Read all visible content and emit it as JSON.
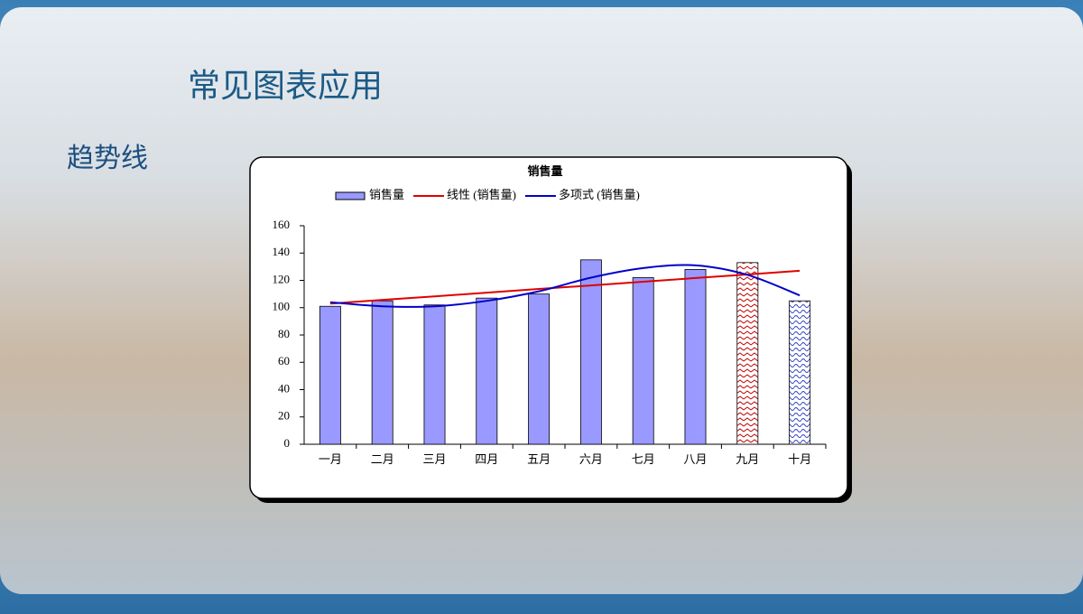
{
  "slide": {
    "title": "常见图表应用",
    "subtitle": "趋势线"
  },
  "chart_data": {
    "type": "bar",
    "title": "销售量",
    "categories": [
      "一月",
      "二月",
      "三月",
      "四月",
      "五月",
      "六月",
      "七月",
      "八月",
      "九月",
      "十月"
    ],
    "series": [
      {
        "name": "销售量",
        "color": "#9999ff",
        "values": [
          101,
          105,
          102,
          107,
          110,
          135,
          122,
          128,
          133,
          105
        ],
        "colors": [
          "#9999ff",
          "#9999ff",
          "#9999ff",
          "#9999ff",
          "#9999ff",
          "#9999ff",
          "#9999ff",
          "#9999ff",
          "#c00000",
          "#2f3fbf"
        ],
        "patterned": [
          false,
          false,
          false,
          false,
          false,
          false,
          false,
          false,
          true,
          true
        ]
      },
      {
        "name": "线性 (销售量)",
        "type": "line",
        "color": "#e00000",
        "values": [
          103,
          105.7,
          108.3,
          111,
          113.7,
          116.3,
          119,
          121.7,
          124.3,
          127
        ]
      },
      {
        "name": "多项式 (销售量)",
        "type": "line",
        "smooth": true,
        "color": "#0000cc",
        "values": [
          104,
          101,
          101,
          105,
          112,
          122,
          129,
          131,
          124,
          109
        ]
      }
    ],
    "ylim": [
      0,
      160
    ],
    "yticks": [
      0,
      20,
      40,
      60,
      80,
      100,
      120,
      140,
      160
    ],
    "grid": false,
    "legend": "top"
  }
}
